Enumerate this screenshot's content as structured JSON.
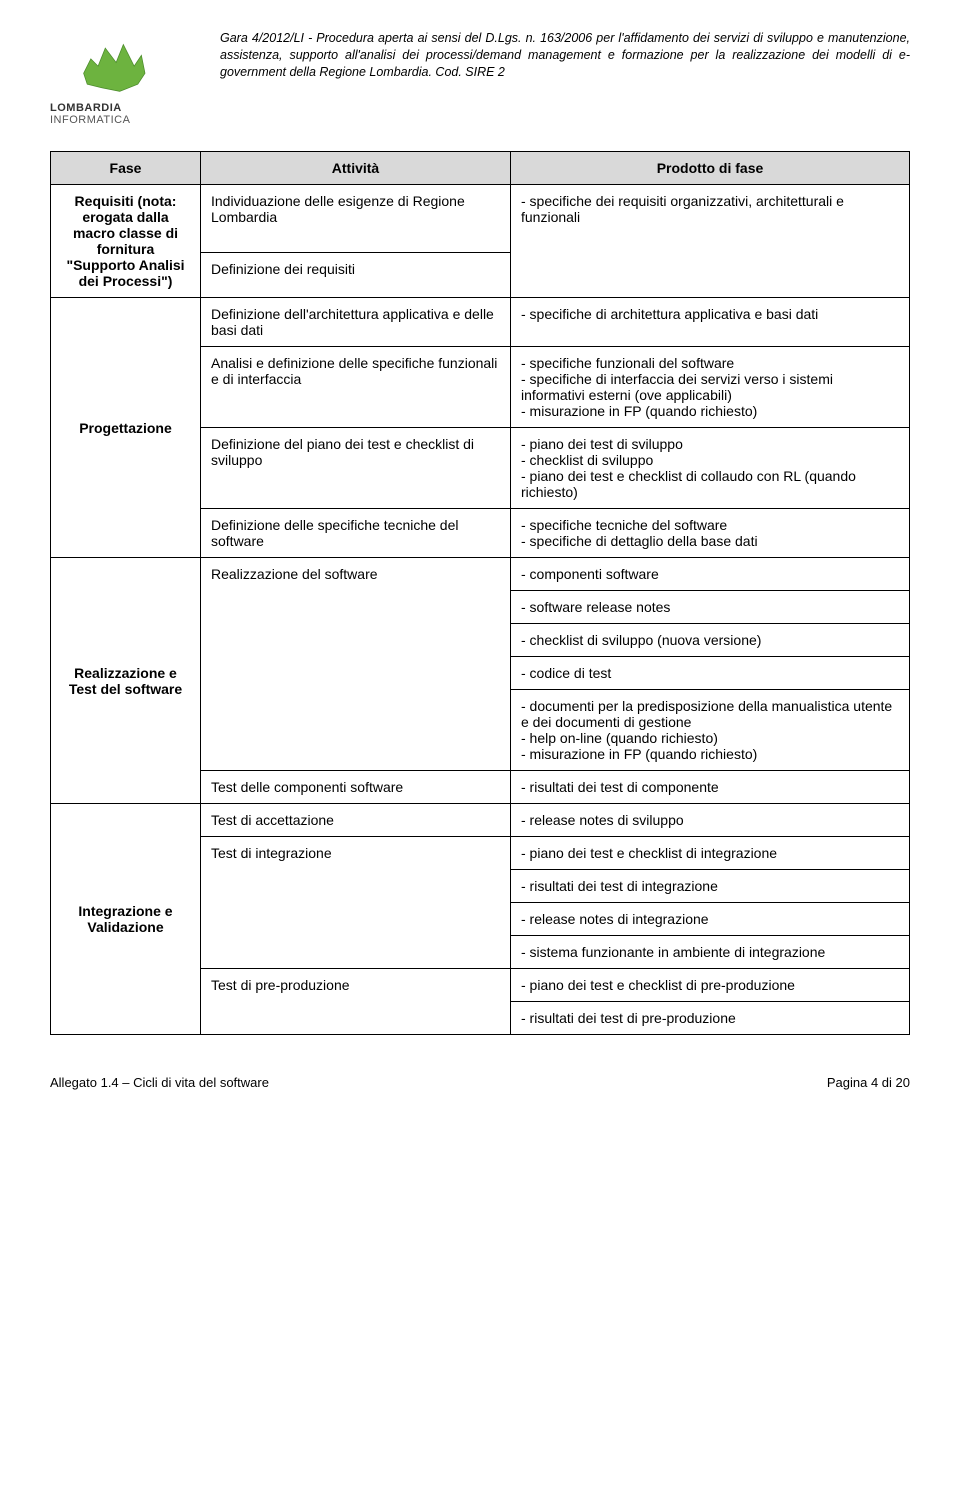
{
  "header_text": "Gara 4/2012/LI - Procedura aperta ai sensi del D.Lgs. n. 163/2006 per l'affidamento dei servizi di sviluppo e manutenzione, assistenza, supporto all'analisi dei processi/demand management e formazione per la realizzazione dei modelli di e-government della Regione Lombardia. Cod. SIRE 2",
  "logo_line1": "LOMBARDIA",
  "logo_line2": "INFORMATICA",
  "columns": {
    "c1": "Fase",
    "c2": "Attività",
    "c3": "Prodotto di fase"
  },
  "rows": {
    "r1": {
      "fase": "Requisiti (nota: erogata dalla macro classe di fornitura \"Supporto Analisi dei Processi\")",
      "a1": "Individuazione delle esigenze di Regione Lombardia",
      "a2": "Definizione dei requisiti",
      "p2": "- specifiche dei requisiti organizzativi, architetturali e funzionali"
    },
    "r2": {
      "fase": "Progettazione",
      "a1": "Definizione dell'architettura applicativa e delle basi dati",
      "p1": "- specifiche di architettura applicativa e basi dati",
      "a2": "Analisi e definizione delle specifiche funzionali e di interfaccia",
      "p2": "- specifiche funzionali del software\n- specifiche di interfaccia dei servizi verso i sistemi informativi esterni (ove applicabili)\n- misurazione in FP (quando richiesto)",
      "a3": "Definizione del piano dei test e checklist di sviluppo",
      "p3": "- piano dei test di sviluppo\n- checklist di sviluppo\n- piano dei test e checklist di collaudo con RL (quando richiesto)",
      "a4": "Definizione delle specifiche tecniche del software",
      "p4": "- specifiche tecniche del software\n- specifiche di dettaglio della base dati"
    },
    "r3": {
      "fase": "Realizzazione e Test del software",
      "a1": "Realizzazione del software",
      "p1": "- componenti software",
      "p2": "- software release notes",
      "p3": "- checklist di sviluppo (nuova versione)",
      "p4": "- codice di test",
      "p5": "- documenti per la predisposizione della manualistica utente e dei documenti di gestione\n- help on-line (quando richiesto)\n- misurazione in FP (quando richiesto)",
      "a2": "Test delle componenti software",
      "p6": "- risultati dei test di componente"
    },
    "r4": {
      "fase": "Integrazione e Validazione",
      "a1": "Test di accettazione",
      "p1": "- release notes di sviluppo",
      "a2": "Test di integrazione",
      "p2": "- piano dei test e checklist di integrazione",
      "p3": "- risultati dei test di integrazione",
      "p4": "- release notes di integrazione",
      "p5": "- sistema funzionante in ambiente di integrazione",
      "a3": "Test di pre-produzione",
      "p6": "- piano dei test e checklist di pre-produzione",
      "p7": "- risultati dei test di pre-produzione"
    }
  },
  "footer_left": "Allegato 1.4 – Cicli di vita del software",
  "footer_right": "Pagina 4 di 20",
  "colors": {
    "header_bg": "#d9d9d9",
    "border": "#000000",
    "logo_green": "#6db33f",
    "text": "#000000"
  },
  "fonts": {
    "body_size": 14,
    "header_size": 12.5
  }
}
